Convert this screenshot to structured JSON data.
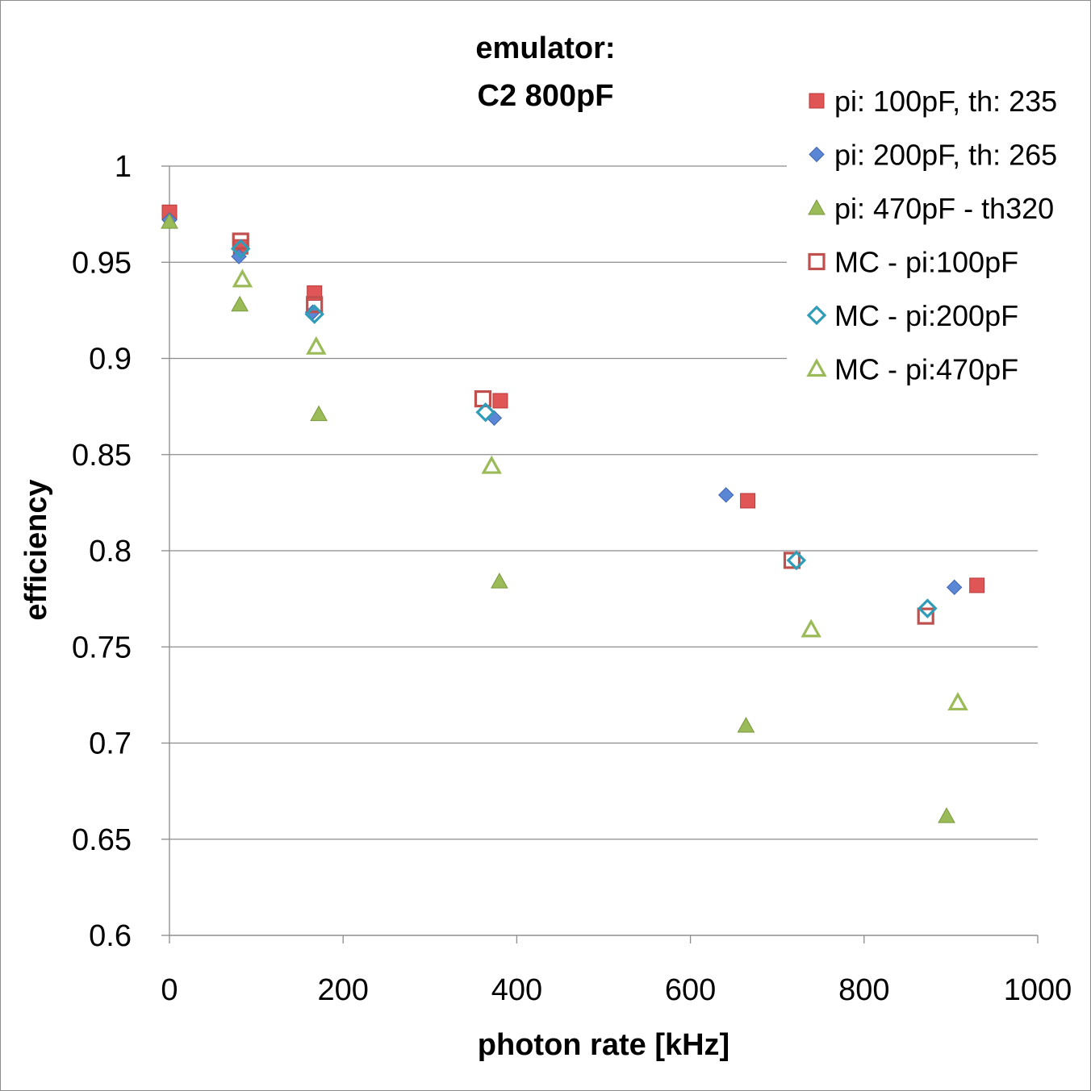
{
  "chart_data": {
    "type": "scatter",
    "title": [
      "emulator:",
      "C2 800pF"
    ],
    "xlabel": "photon rate [kHz]",
    "ylabel": "efficiency",
    "xlim": [
      0,
      1000
    ],
    "ylim": [
      0.6,
      1.0
    ],
    "x_ticks": [
      "0",
      "200",
      "400",
      "600",
      "800",
      "1000"
    ],
    "y_ticks": [
      "0.6",
      "0.65",
      "0.7",
      "0.75",
      "0.8",
      "0.85",
      "0.9",
      "0.95",
      "1"
    ],
    "grid": "horizontal",
    "legend_position": "top-right",
    "series": [
      {
        "name": "pi: 100pF, th: 235",
        "marker": "square-filled",
        "color": "#e05555",
        "stroke": "#b83a3a",
        "points": [
          [
            0,
            0.976
          ],
          [
            82,
            0.958
          ],
          [
            167,
            0.934
          ],
          [
            381,
            0.878
          ],
          [
            666,
            0.826
          ],
          [
            930,
            0.782
          ]
        ]
      },
      {
        "name": "pi: 200pF, th: 265",
        "marker": "diamond-filled",
        "color": "#5b86d6",
        "stroke": "#3f66b0",
        "points": [
          [
            0,
            0.972
          ],
          [
            80,
            0.953
          ],
          [
            165,
            0.924
          ],
          [
            374,
            0.869
          ],
          [
            641,
            0.829
          ],
          [
            904,
            0.781
          ]
        ]
      },
      {
        "name": "pi: 470pF - th320",
        "marker": "triangle-filled",
        "color": "#9bbb59",
        "stroke": "#7a9a3e",
        "points": [
          [
            0,
            0.971
          ],
          [
            81,
            0.928
          ],
          [
            172,
            0.871
          ],
          [
            380,
            0.784
          ],
          [
            664,
            0.709
          ],
          [
            895,
            0.662
          ]
        ]
      },
      {
        "name": "MC - pi:100pF",
        "marker": "square-open",
        "color": "#c0504d",
        "points": [
          [
            82,
            0.961
          ],
          [
            167,
            0.928
          ],
          [
            361,
            0.879
          ],
          [
            717,
            0.795
          ],
          [
            871,
            0.766
          ]
        ]
      },
      {
        "name": "MC - pi:200pF",
        "marker": "diamond-open",
        "color": "#2f9cb8",
        "points": [
          [
            82,
            0.957
          ],
          [
            167,
            0.923
          ],
          [
            364,
            0.872
          ],
          [
            722,
            0.795
          ],
          [
            873,
            0.77
          ]
        ]
      },
      {
        "name": "MC - pi:470pF",
        "marker": "triangle-open",
        "color": "#9bbb59",
        "points": [
          [
            84,
            0.941
          ],
          [
            169,
            0.906
          ],
          [
            371,
            0.844
          ],
          [
            739,
            0.759
          ],
          [
            908,
            0.721
          ]
        ]
      }
    ]
  }
}
